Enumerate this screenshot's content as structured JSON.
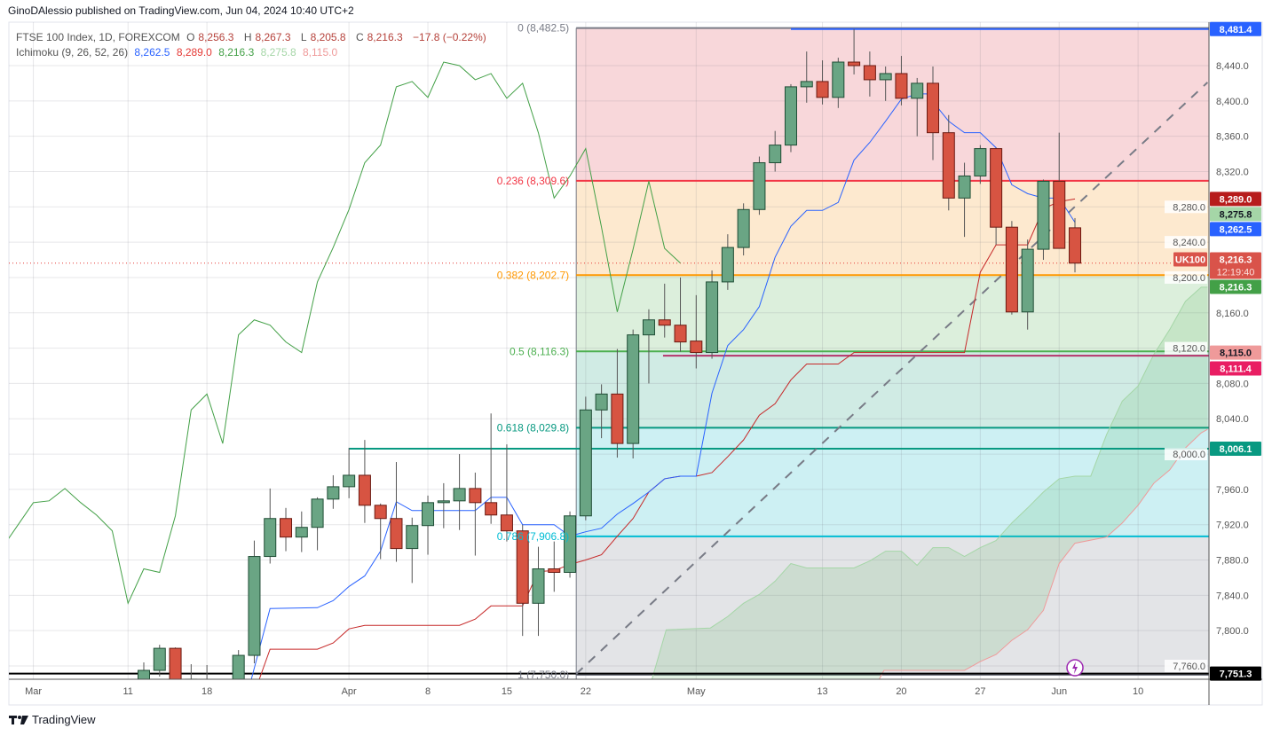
{
  "publisher": "GinoDAlessio published on TradingView.com, Jun 04, 2024 10:40 UTC+2",
  "legend": {
    "symbol": "FTSE 100 Index, 1D, FOREXCOM",
    "open_prefix": "O",
    "open": "8,256.3",
    "high_prefix": "H",
    "high": "8,267.3",
    "low_prefix": "L",
    "low": "8,205.8",
    "close_prefix": "C",
    "close": "8,216.3",
    "change": "−17.8 (−0.22%)",
    "ichimoku_label": "Ichimoku (9, 26, 52, 26)",
    "ichimoku_values": [
      "8,262.5",
      "8,289.0",
      "8,216.3",
      "8,275.8",
      "8,115.0"
    ],
    "ichimoku_colors": [
      "#2962ff",
      "#e53935",
      "#43a047",
      "#a5d6a7",
      "#ef9a9a"
    ]
  },
  "footer": {
    "brand": "TradingView"
  },
  "chart_data": {
    "type": "candlestick",
    "symbol": "UK100",
    "interval": "1D",
    "ylim": [
      7745,
      8490
    ],
    "grid": true,
    "y_tick_labels": [
      "8,440.0",
      "8,400.0",
      "8,360.0",
      "8,320.0",
      "8,280.0",
      "8,240.0",
      "8,200.0",
      "8,160.0",
      "8,120.0",
      "8,080.0",
      "8,040.0",
      "8,000.0",
      "7,960.0",
      "7,920.0",
      "7,880.0",
      "7,840.0",
      "7,800.0",
      "7,760.0"
    ],
    "x_ticks": [
      {
        "label": "Mar",
        "index": -7
      },
      {
        "label": "11",
        "index": -1
      },
      {
        "label": "18",
        "index": 4
      },
      {
        "label": "Apr",
        "index": 13
      },
      {
        "label": "8",
        "index": 18
      },
      {
        "label": "15",
        "index": 23
      },
      {
        "label": "22",
        "index": 28
      },
      {
        "label": "May",
        "index": 35
      },
      {
        "label": "13",
        "index": 43
      },
      {
        "label": "20",
        "index": 48
      },
      {
        "label": "27",
        "index": 53
      },
      {
        "label": "Jun",
        "index": 58
      },
      {
        "label": "10",
        "index": 63
      }
    ],
    "candles_ohlc": [
      [
        7745,
        7764,
        7740,
        7755
      ],
      [
        7755,
        7784,
        7748,
        7780
      ],
      [
        7780,
        7781,
        7730,
        7740
      ],
      [
        7730,
        7762,
        7700,
        7745
      ],
      [
        7720,
        7761,
        7700,
        7740
      ],
      [
        7700,
        7740,
        7690,
        7720
      ],
      [
        7730,
        7778,
        7720,
        7772
      ],
      [
        7772,
        7902,
        7763,
        7884
      ],
      [
        7884,
        7961,
        7876,
        7927
      ],
      [
        7927,
        7939,
        7890,
        7906
      ],
      [
        7906,
        7935,
        7889,
        7917
      ],
      [
        7917,
        7951,
        7891,
        7949
      ],
      [
        7949,
        7976,
        7938,
        7963
      ],
      [
        7963,
        8007,
        7950,
        7976
      ],
      [
        7976,
        8016,
        7922,
        7942
      ],
      [
        7942,
        7944,
        7881,
        7927
      ],
      [
        7927,
        7991,
        7878,
        7893
      ],
      [
        7893,
        7928,
        7854,
        7919
      ],
      [
        7919,
        7953,
        7886,
        7945
      ],
      [
        7945,
        7967,
        7916,
        7947
      ],
      [
        7947,
        8000,
        7914,
        7961
      ],
      [
        7961,
        7979,
        7885,
        7945
      ],
      [
        7945,
        8046,
        7921,
        7931
      ],
      [
        7931,
        8011,
        7901,
        7913
      ],
      [
        7913,
        7920,
        7794,
        7831
      ],
      [
        7831,
        7895,
        7794,
        7870
      ],
      [
        7870,
        7901,
        7844,
        7866
      ],
      [
        7866,
        7935,
        7860,
        7930
      ],
      [
        7930,
        8065,
        7925,
        8050
      ],
      [
        8050,
        8079,
        8018,
        8068
      ],
      [
        8068,
        8119,
        7996,
        8012
      ],
      [
        8012,
        8141,
        7995,
        8135
      ],
      [
        8135,
        8164,
        8080,
        8152
      ],
      [
        8152,
        8193,
        8132,
        8146
      ],
      [
        8146,
        8200,
        8116,
        8127
      ],
      [
        8128,
        8180,
        8097,
        8115
      ],
      [
        8115,
        8208,
        8108,
        8195
      ],
      [
        8195,
        8249,
        8186,
        8234
      ],
      [
        8234,
        8284,
        8225,
        8277
      ],
      [
        8277,
        8337,
        8271,
        8330
      ],
      [
        8330,
        8366,
        8320,
        8350
      ],
      [
        8350,
        8419,
        8342,
        8416
      ],
      [
        8416,
        8456,
        8398,
        8422
      ],
      [
        8422,
        8446,
        8396,
        8404
      ],
      [
        8404,
        8449,
        8392,
        8444
      ],
      [
        8444,
        8481.4,
        8430,
        8440
      ],
      [
        8440,
        8456,
        8405,
        8424
      ],
      [
        8424,
        8439,
        8400,
        8431
      ],
      [
        8431,
        8451,
        8395,
        8403
      ],
      [
        8403,
        8426,
        8360,
        8420
      ],
      [
        8420,
        8439,
        8333,
        8364
      ],
      [
        8364,
        8384,
        8276,
        8290
      ],
      [
        8290,
        8330,
        8246,
        8315
      ],
      [
        8315,
        8350,
        8306,
        8346
      ],
      [
        8346,
        8347,
        8237,
        8257
      ],
      [
        8257,
        8264,
        8158,
        8161
      ],
      [
        8161,
        8243,
        8141,
        8232
      ],
      [
        8232,
        8311,
        8220,
        8309
      ],
      [
        8309,
        8364,
        8233,
        8233
      ],
      [
        8256.3,
        8267.3,
        8205.8,
        8216.3
      ]
    ],
    "ichimoku": {
      "params": [
        9,
        26,
        52,
        26
      ],
      "chikou_offset": 25,
      "conversion_line": [
        [
          6.8,
          7744
        ],
        [
          8,
          7825
        ],
        [
          11,
          7826
        ],
        [
          12,
          7834
        ],
        [
          13,
          7850
        ],
        [
          14,
          7862
        ],
        [
          15,
          7890
        ],
        [
          16,
          7946
        ],
        [
          17,
          7936
        ],
        [
          21,
          7936
        ],
        [
          22,
          7951
        ],
        [
          23,
          7951
        ],
        [
          24,
          7920
        ],
        [
          26,
          7920
        ],
        [
          27,
          7907
        ],
        [
          28,
          7912
        ],
        [
          29,
          7916
        ],
        [
          30,
          7932
        ],
        [
          31,
          7944
        ],
        [
          32,
          7957
        ],
        [
          33,
          7972
        ],
        [
          34,
          7975
        ],
        [
          35,
          7975
        ],
        [
          36,
          8069
        ],
        [
          37,
          8123
        ],
        [
          38,
          8141
        ],
        [
          39,
          8167
        ],
        [
          40,
          8223
        ],
        [
          41,
          8258
        ],
        [
          42,
          8276
        ],
        [
          43,
          8276
        ],
        [
          44,
          8285
        ],
        [
          45,
          8333
        ],
        [
          46,
          8353
        ],
        [
          47,
          8377
        ],
        [
          48,
          8402
        ],
        [
          49,
          8408
        ],
        [
          49.6,
          8408
        ],
        [
          51,
          8377
        ],
        [
          52,
          8364
        ],
        [
          53,
          8364
        ],
        [
          54,
          8347
        ],
        [
          55,
          8305
        ],
        [
          56,
          8295
        ],
        [
          57,
          8290
        ],
        [
          58,
          8290
        ],
        [
          59,
          8262.5
        ]
      ],
      "base_line": [
        [
          7.3,
          7744
        ],
        [
          8,
          7779
        ],
        [
          11,
          7779
        ],
        [
          12,
          7786
        ],
        [
          13,
          7802
        ],
        [
          14,
          7806
        ],
        [
          20,
          7806
        ],
        [
          21,
          7813
        ],
        [
          22,
          7828
        ],
        [
          24,
          7828
        ],
        [
          25,
          7867
        ],
        [
          26,
          7868
        ],
        [
          27,
          7875
        ],
        [
          28,
          7880
        ],
        [
          29,
          7886
        ],
        [
          30,
          7907
        ],
        [
          31,
          7927
        ],
        [
          32,
          7957
        ],
        [
          33,
          7972
        ],
        [
          34,
          7975
        ],
        [
          35,
          7975
        ],
        [
          36,
          7979
        ],
        [
          37,
          7997
        ],
        [
          38,
          8016
        ],
        [
          39,
          8044
        ],
        [
          40,
          8057
        ],
        [
          41,
          8084
        ],
        [
          42,
          8102
        ],
        [
          44,
          8102
        ],
        [
          45,
          8115
        ],
        [
          52,
          8115
        ],
        [
          53,
          8206
        ],
        [
          54,
          8237
        ],
        [
          56,
          8237
        ],
        [
          57,
          8278
        ],
        [
          58,
          8286
        ],
        [
          59,
          8289.0
        ]
      ],
      "leading_span_a": [
        [
          32.2,
          7745
        ],
        [
          33.1,
          7801
        ],
        [
          35.9,
          7803
        ],
        [
          37,
          7816
        ],
        [
          38,
          7831
        ],
        [
          39,
          7841
        ],
        [
          40,
          7856
        ],
        [
          41,
          7876
        ],
        [
          42,
          7871
        ],
        [
          45,
          7871
        ],
        [
          46,
          7879
        ],
        [
          47,
          7890
        ],
        [
          48,
          7890
        ],
        [
          49,
          7874
        ],
        [
          50,
          7894
        ],
        [
          51,
          7894
        ],
        [
          52,
          7884
        ],
        [
          53,
          7894
        ],
        [
          54,
          7902
        ],
        [
          55,
          7922
        ],
        [
          56,
          7939
        ],
        [
          57,
          7957
        ],
        [
          58,
          7972
        ],
        [
          59,
          7975
        ],
        [
          60,
          7975
        ],
        [
          61,
          8022
        ],
        [
          62,
          8060
        ],
        [
          63,
          8077
        ],
        [
          64,
          8113
        ],
        [
          65,
          8141
        ],
        [
          66,
          8173
        ],
        [
          67,
          8189
        ],
        [
          67.4,
          8189
        ]
      ],
      "leading_span_b": [
        [
          46.6,
          7745
        ],
        [
          46.9,
          7755
        ],
        [
          52,
          7755
        ],
        [
          53,
          7765
        ],
        [
          54,
          7773
        ],
        [
          55,
          7789
        ],
        [
          56,
          7801
        ],
        [
          57,
          7823
        ],
        [
          58,
          7876
        ],
        [
          59,
          7899
        ],
        [
          61,
          7906
        ],
        [
          62,
          7922
        ],
        [
          63,
          7942
        ],
        [
          64,
          7967
        ],
        [
          65,
          7982
        ],
        [
          66,
          8007
        ],
        [
          67,
          8024
        ],
        [
          67.4,
          8028
        ]
      ],
      "colors": {
        "conversion": "#2962ff",
        "base": "#c62828",
        "lagging": "#43a047",
        "span_a": "#a5d6a7",
        "span_b": "#ef9a9a",
        "cloud": "#4caf50"
      }
    },
    "fibonacci": {
      "start_index": 27.4,
      "levels": [
        {
          "ratio": 0,
          "price": 8482.5,
          "label": "0 (8,482.5)",
          "line": "#787b86",
          "fill": "#f8d7da"
        },
        {
          "ratio": 0.236,
          "price": 8309.6,
          "label": "0.236 (8,309.6)",
          "line": "#f23645",
          "fill": "#fde9cf"
        },
        {
          "ratio": 0.382,
          "price": 8202.7,
          "label": "0.382 (8,202.7)",
          "line": "#ff9800",
          "fill": "#dcefdc"
        },
        {
          "ratio": 0.5,
          "price": 8116.3,
          "label": "0.5 (8,116.3)",
          "line": "#4caf50",
          "fill": "#d0ebe4"
        },
        {
          "ratio": 0.618,
          "price": 8029.8,
          "label": "0.618 (8,029.8)",
          "line": "#089981",
          "fill": "#cdf0f3"
        },
        {
          "ratio": 0.786,
          "price": 7906.8,
          "label": "0.786 (7,906.8)",
          "line": "#00bcd4",
          "fill": "#e3e4e7"
        },
        {
          "ratio": 1,
          "price": 7750.0,
          "label": "1 (7,750.0)",
          "line": "#787b86",
          "fill": null
        }
      ]
    },
    "horizontal_lines": [
      {
        "price": 8481.4,
        "from_index": 41.0,
        "color": "#2962ff"
      },
      {
        "price": 8006.1,
        "from_index": 13,
        "color": "#089981"
      },
      {
        "price": 8111.4,
        "from_index": 32.9,
        "color": "#b5336b"
      },
      {
        "price": 7751.3,
        "from_index": -9,
        "color": "#000000"
      }
    ],
    "trend_line": {
      "from": [
        27.4,
        7751
      ],
      "to": [
        67.4,
        8421
      ],
      "color": "#787b86",
      "style": "dashed"
    },
    "current_price": 8216.3,
    "price_labels": [
      {
        "text": "8,481.4",
        "price": 8481.4,
        "bg": "#2962ff",
        "fg": "#ffffff"
      },
      {
        "text": "8,289.0",
        "price": 8289.0,
        "bg": "#b71c1c",
        "fg": "#ffffff"
      },
      {
        "text": "8,275.8",
        "price": 8275.8,
        "bg": "#a5d6a7",
        "fg": "#131722"
      },
      {
        "text": "8,262.5",
        "price": 8262.5,
        "bg": "#2962ff",
        "fg": "#ffffff"
      },
      {
        "text": "8,216.3",
        "price": 8220.5,
        "bg": "#d9534a",
        "fg": "#ffffff",
        "sub": "12:19:40",
        "tag": "UK100"
      },
      {
        "text": "8,216.3",
        "price": 8199,
        "bg": "#43a047",
        "fg": "#ffffff"
      },
      {
        "text": "8,115.0",
        "price": 8115.0,
        "bg": "#ef9a9a",
        "fg": "#131722"
      },
      {
        "text": "8,111.4",
        "price": 8097,
        "bg": "#e91e63",
        "fg": "#ffffff"
      },
      {
        "text": "8,006.1",
        "price": 8006.1,
        "bg": "#089981",
        "fg": "#ffffff"
      },
      {
        "text": "7,751.3",
        "price": 7751.3,
        "bg": "#000000",
        "fg": "#ffffff"
      }
    ],
    "colors": {
      "up": "#6aa584",
      "up_border": "#1f4d35",
      "down": "#d75442",
      "down_border": "#6b1a12",
      "wick": "#555555",
      "event": "#9c27b0"
    },
    "event_icon": {
      "name": "lightning-icon",
      "index": 59
    }
  }
}
